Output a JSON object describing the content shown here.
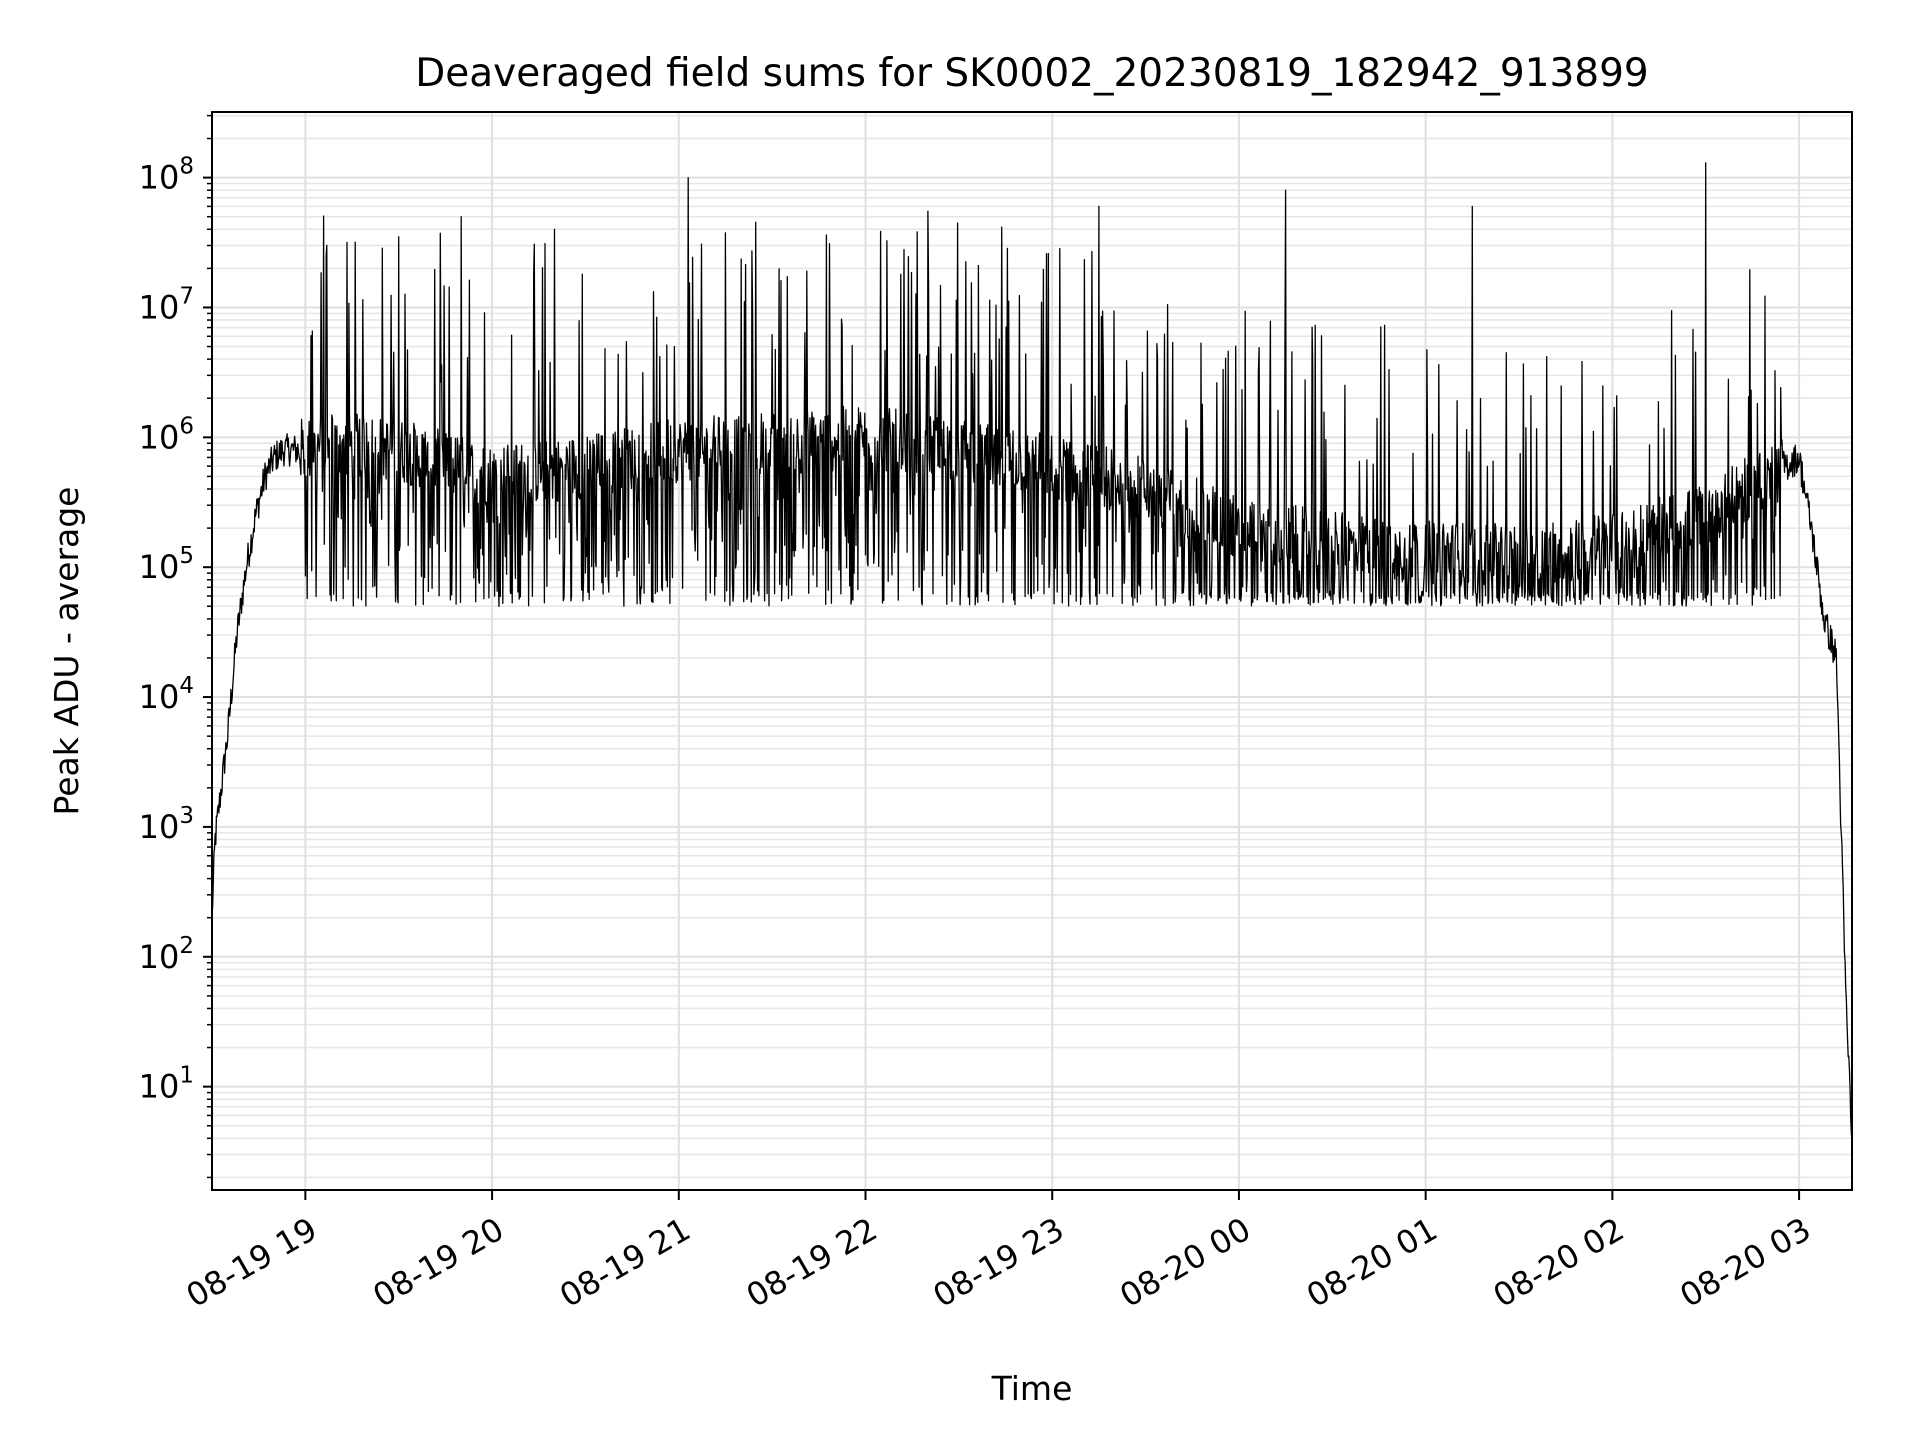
{
  "chart_data": {
    "type": "line",
    "title": "Deaveraged field sums for SK0002_20230819_182942_913899",
    "xlabel": "Time",
    "ylabel": "Peak ADU - average",
    "yscale": "log",
    "ylim": [
      1.6,
      320000000
    ],
    "xlim": [
      "2023-08-19 18:30",
      "2023-08-20 03:17"
    ],
    "grid": true,
    "line_color": "#000000",
    "x_ticks": [
      "08-19 19",
      "08-19 20",
      "08-19 21",
      "08-19 22",
      "08-19 23",
      "08-20 00",
      "08-20 01",
      "08-20 02",
      "08-20 03"
    ],
    "y_ticks": [
      {
        "base": "10",
        "exp": "1"
      },
      {
        "base": "10",
        "exp": "2"
      },
      {
        "base": "10",
        "exp": "3"
      },
      {
        "base": "10",
        "exp": "4"
      },
      {
        "base": "10",
        "exp": "5"
      },
      {
        "base": "10",
        "exp": "6"
      },
      {
        "base": "10",
        "exp": "7"
      },
      {
        "base": "10",
        "exp": "8"
      }
    ],
    "series": [
      {
        "x": [
          "2023-08-19 18:30",
          "2023-08-19 18:31",
          "2023-08-19 18:33",
          "2023-08-19 18:35",
          "2023-08-19 18:38",
          "2023-08-19 18:41",
          "2023-08-19 18:44",
          "2023-08-19 18:47",
          "2023-08-19 18:50",
          "2023-08-19 18:53",
          "2023-08-19 18:56",
          "2023-08-19 19:00",
          "2023-08-19 19:10",
          "2023-08-19 19:30",
          "2023-08-19 20:00",
          "2023-08-19 20:30",
          "2023-08-19 21:00",
          "2023-08-19 21:30",
          "2023-08-19 22:00",
          "2023-08-19 22:30",
          "2023-08-19 23:00",
          "2023-08-19 23:30",
          "2023-08-20 00:00",
          "2023-08-20 00:30",
          "2023-08-20 01:00",
          "2023-08-20 01:30",
          "2023-08-20 02:00",
          "2023-08-20 02:30",
          "2023-08-20 02:50",
          "2023-08-20 03:00",
          "2023-08-20 03:04",
          "2023-08-20 03:08",
          "2023-08-20 03:12",
          "2023-08-20 03:15",
          "2023-08-20 03:17"
        ],
        "y": [
          200,
          800,
          2000,
          5000,
          30000,
          100000,
          250000,
          500000,
          700000,
          800000,
          800000,
          800000,
          900000,
          800000,
          500000,
          600000,
          800000,
          900000,
          1000000,
          800000,
          600000,
          400000,
          200000,
          150000,
          130000,
          120000,
          150000,
          250000,
          500000,
          700000,
          200000,
          40000,
          20000,
          50,
          4
        ],
        "spike_peaks": [
          {
            "x": "2023-08-19 19:30",
            "y": 35000000
          },
          {
            "x": "2023-08-19 19:50",
            "y": 50000000
          },
          {
            "x": "2023-08-19 20:20",
            "y": 40000000
          },
          {
            "x": "2023-08-19 21:03",
            "y": 100000000
          },
          {
            "x": "2023-08-19 22:20",
            "y": 55000000
          },
          {
            "x": "2023-08-19 23:15",
            "y": 60000000
          },
          {
            "x": "2023-08-20 00:15",
            "y": 80000000
          },
          {
            "x": "2023-08-20 01:15",
            "y": 60000000
          },
          {
            "x": "2023-08-20 02:30",
            "y": 130000000
          }
        ]
      }
    ]
  }
}
